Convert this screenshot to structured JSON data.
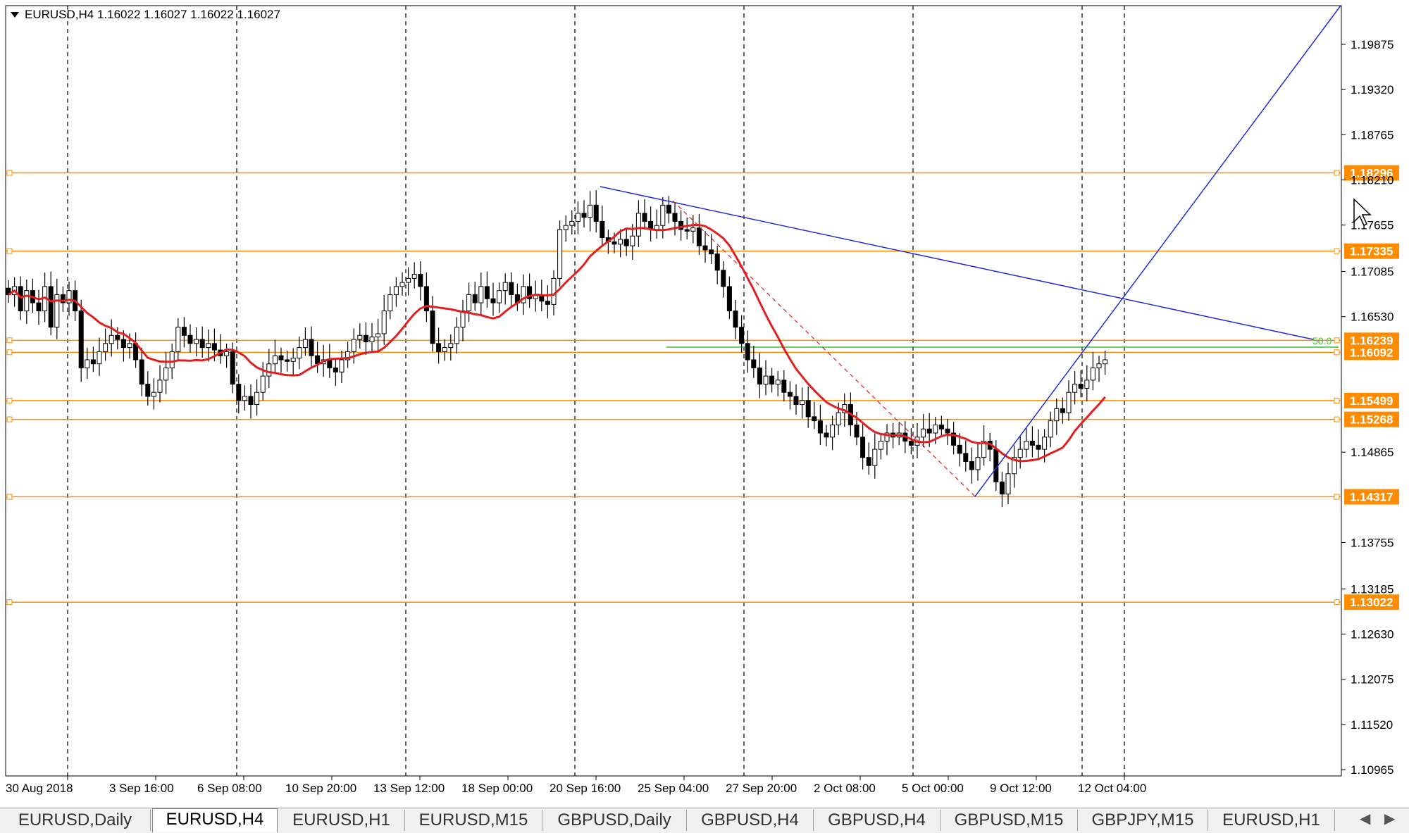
{
  "header": {
    "symbol_title": "EURUSD,H4  1.16022 1.16027 1.16022 1.16027"
  },
  "price_axis": {
    "labels": [
      "1.19875",
      "1.19320",
      "1.18765",
      "1.18210",
      "1.17655",
      "1.17085",
      "1.16530",
      "1.14865",
      "1.13755",
      "1.13185",
      "1.12630",
      "1.12075",
      "1.11520",
      "1.10965"
    ]
  },
  "time_axis": {
    "labels": [
      "30 Aug 2018",
      "3 Sep 16:00",
      "6 Sep 08:00",
      "10 Sep 20:00",
      "13 Sep 12:00",
      "18 Sep 00:00",
      "20 Sep 16:00",
      "25 Sep 04:00",
      "27 Sep 20:00",
      "2 Oct 08:00",
      "5 Oct 00:00",
      "9 Oct 12:00",
      "12 Oct 04:00"
    ]
  },
  "levels": [
    {
      "value": 1.18296,
      "label": "1.18296"
    },
    {
      "value": 1.17335,
      "label": "1.17335"
    },
    {
      "value": 1.16239,
      "label": "1.16239"
    },
    {
      "value": 1.16092,
      "label": "1.16092"
    },
    {
      "value": 1.15499,
      "label": "1.15499"
    },
    {
      "value": 1.15268,
      "label": "1.15268"
    },
    {
      "value": 1.14317,
      "label": "1.14317"
    },
    {
      "value": 1.13022,
      "label": "1.13022"
    }
  ],
  "fib_label": "50.0",
  "colors": {
    "level_line": "#ff8c00",
    "level_label_bg": "#ff8c00",
    "trend_line": "#1f2fd6",
    "moving_average": "#e02020",
    "fib_line": "#39c239",
    "bull_body": "#ffffff",
    "bear_body": "#000000"
  },
  "chart_data": {
    "type": "candlestick",
    "symbol": "EURUSD",
    "timeframe": "H4",
    "ohlc_last": {
      "open": 1.16022,
      "high": 1.16027,
      "low": 1.16022,
      "close": 1.16027
    },
    "ylim": [
      1.10965,
      1.19875
    ],
    "closes": [
      1.168,
      1.169,
      1.166,
      1.1685,
      1.167,
      1.166,
      1.169,
      1.164,
      1.168,
      1.167,
      1.1685,
      1.166,
      1.159,
      1.16,
      1.1595,
      1.161,
      1.162,
      1.163,
      1.1625,
      1.1615,
      1.162,
      1.16,
      1.157,
      1.1555,
      1.156,
      1.1575,
      1.159,
      1.161,
      1.164,
      1.163,
      1.162,
      1.1625,
      1.1615,
      1.162,
      1.1612,
      1.1605,
      1.161,
      1.157,
      1.155,
      1.1555,
      1.1545,
      1.156,
      1.158,
      1.1595,
      1.1605,
      1.16,
      1.1598,
      1.1602,
      1.1615,
      1.1625,
      1.1605,
      1.1595,
      1.16,
      1.159,
      1.1585,
      1.16,
      1.161,
      1.1625,
      1.163,
      1.1622,
      1.1628,
      1.1632,
      1.166,
      1.168,
      1.169,
      1.1695,
      1.17,
      1.1705,
      1.169,
      1.166,
      1.162,
      1.161,
      1.1615,
      1.162,
      1.164,
      1.166,
      1.168,
      1.167,
      1.169,
      1.1675,
      1.167,
      1.1685,
      1.1695,
      1.168,
      1.167,
      1.169,
      1.1675,
      1.168,
      1.1672,
      1.1668,
      1.17,
      1.176,
      1.1765,
      1.177,
      1.178,
      1.1775,
      1.179,
      1.177,
      1.175,
      1.1745,
      1.1742,
      1.1748,
      1.174,
      1.1752,
      1.178,
      1.177,
      1.176,
      1.1765,
      1.179,
      1.178,
      1.177,
      1.176,
      1.1758,
      1.1762,
      1.174,
      1.1735,
      1.173,
      1.171,
      1.169,
      1.166,
      1.164,
      1.162,
      1.16,
      1.159,
      1.157,
      1.158,
      1.157,
      1.1575,
      1.156,
      1.1555,
      1.1545,
      1.155,
      1.153,
      1.1525,
      1.151,
      1.1505,
      1.152,
      1.1535,
      1.1545,
      1.152,
      1.1505,
      1.148,
      1.147,
      1.149,
      1.15,
      1.151,
      1.1505,
      1.151,
      1.15,
      1.1495,
      1.1505,
      1.1515,
      1.151,
      1.152,
      1.1515,
      1.151,
      1.1495,
      1.1485,
      1.1475,
      1.1465,
      1.148,
      1.15,
      1.149,
      1.145,
      1.1435,
      1.146,
      1.148,
      1.149,
      1.15,
      1.1495,
      1.149,
      1.1505,
      1.1525,
      1.154,
      1.1535,
      1.156,
      1.157,
      1.1565,
      1.1575,
      1.159,
      1.1595,
      1.16
    ]
  }
}
